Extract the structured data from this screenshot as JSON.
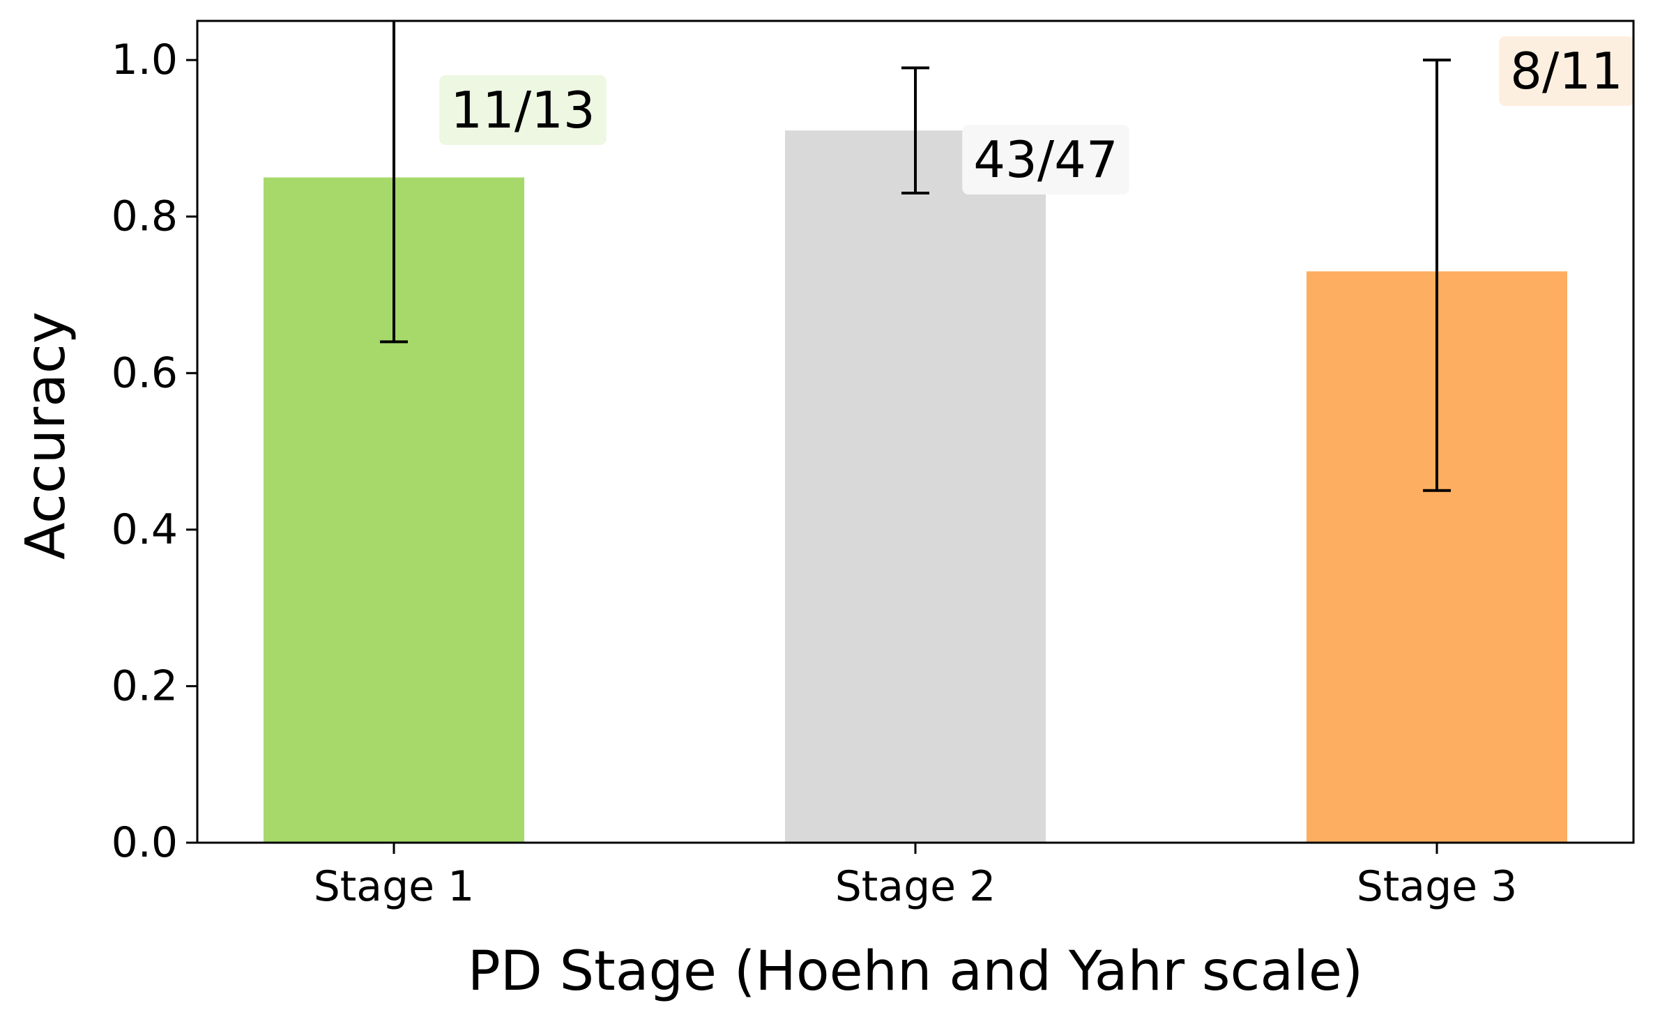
{
  "chart_data": {
    "type": "bar",
    "title": "",
    "xlabel": "PD Stage (Hoehn and Yahr scale)",
    "ylabel": "Accuracy",
    "ylim": [
      0,
      1.05
    ],
    "yticks": [
      "0.0",
      "0.2",
      "0.4",
      "0.6",
      "0.8",
      "1.0"
    ],
    "categories": [
      "Stage 1",
      "Stage 2",
      "Stage 3"
    ],
    "values": [
      0.85,
      0.91,
      0.73
    ],
    "error_low": [
      0.64,
      0.83,
      0.45
    ],
    "error_high": [
      1.08,
      0.99,
      1.0
    ],
    "annotations": [
      "11/13",
      "43/47",
      "8/11"
    ],
    "colors": [
      "#a6d96a",
      "#d9d9d9",
      "#fdae61"
    ],
    "annotation_bg": [
      "#edf7e1",
      "#f7f7f7",
      "#fdefe0"
    ],
    "grid": false
  }
}
